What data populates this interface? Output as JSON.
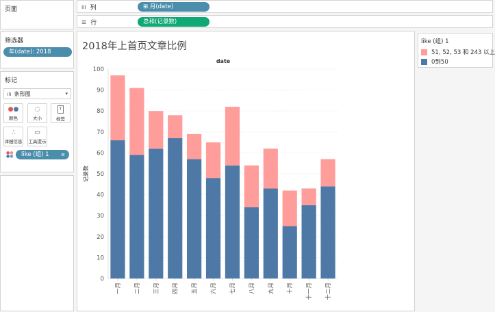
{
  "left": {
    "pages_title": "页面",
    "filters_title": "筛选器",
    "filter_pill": "年(date): 2018",
    "marks_title": "标记",
    "mark_type": "条形图",
    "mark_buttons": [
      {
        "label": "颜色",
        "icon": "color-dots-icon"
      },
      {
        "label": "大小",
        "icon": "size-icon"
      },
      {
        "label": "标签",
        "icon": "label-icon"
      },
      {
        "label": "详细信息",
        "icon": "detail-icon"
      },
      {
        "label": "工具提示",
        "icon": "tooltip-icon"
      }
    ],
    "color_pill": "like (组) 1"
  },
  "shelves": {
    "columns_label": "列",
    "columns_pill": "⊞ 月(date)",
    "rows_label": "行",
    "rows_pill": "总和(记录数)"
  },
  "legend": {
    "title": "like (组) 1",
    "items": [
      {
        "label": "51, 52, 53 和 243 以上",
        "color": "#ff9d9a"
      },
      {
        "label": "0到50",
        "color": "#4e79a7"
      }
    ]
  },
  "chart_data": {
    "type": "bar",
    "stacked": true,
    "title": "2018年上首页文章比例",
    "column_header": "date",
    "ylabel": "记录数",
    "ylim": [
      0,
      100
    ],
    "yticks": [
      0,
      10,
      20,
      30,
      40,
      50,
      60,
      70,
      80,
      90,
      100
    ],
    "categories": [
      "一月",
      "二月",
      "三月",
      "四月",
      "五月",
      "六月",
      "七月",
      "八月",
      "九月",
      "十月",
      "十一月",
      "十二月"
    ],
    "series": [
      {
        "name": "0到50",
        "color": "#4e79a7",
        "values": [
          66,
          59,
          62,
          67,
          57,
          48,
          54,
          34,
          43,
          25,
          35,
          44
        ]
      },
      {
        "name": "51, 52, 53 和 243 以上",
        "color": "#ff9d9a",
        "values": [
          31,
          32,
          18,
          11,
          12,
          17,
          28,
          20,
          19,
          17,
          8,
          13
        ]
      }
    ],
    "grid": true
  }
}
